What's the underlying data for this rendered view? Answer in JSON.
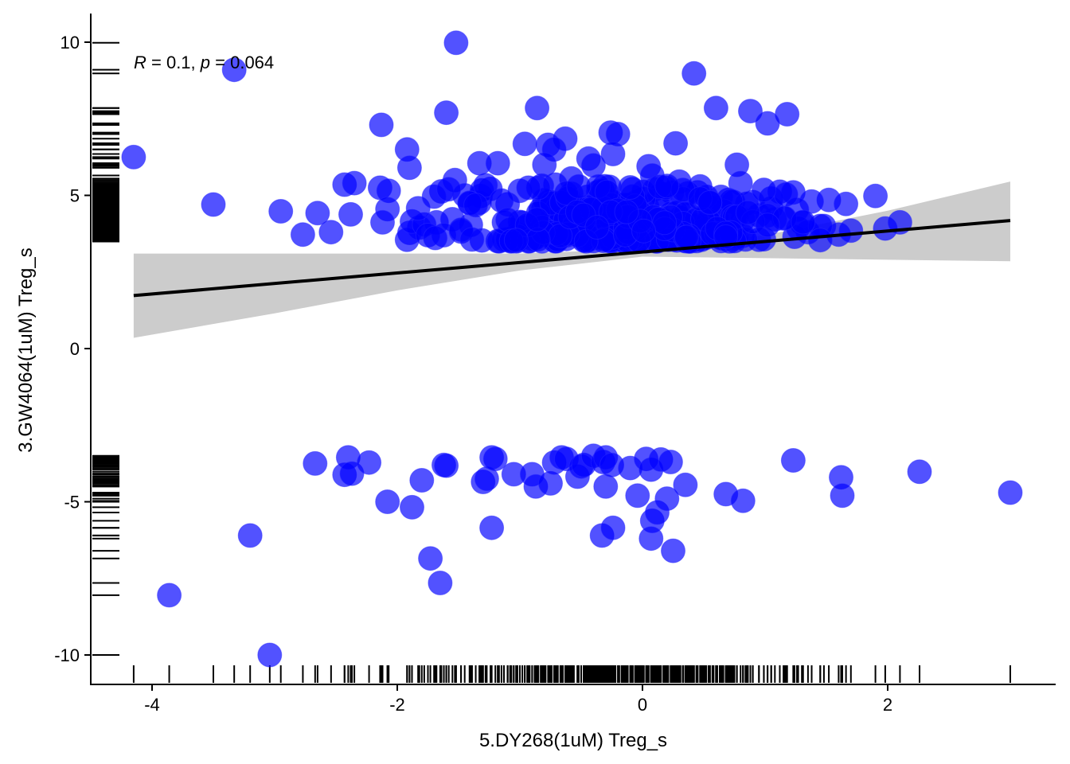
{
  "chart_data": {
    "type": "scatter",
    "title": "",
    "xlabel": "5.DY268(1uM) Treg_s",
    "ylabel": "3.GW4064(1uM) Treg_s",
    "xlim": [
      -4.5,
      3.35
    ],
    "ylim": [
      -11,
      11
    ],
    "x_ticks": [
      -4,
      -2,
      0,
      2
    ],
    "y_ticks": [
      -10,
      -5,
      0,
      5,
      10
    ],
    "x_tick_labels": [
      "-4",
      "-2",
      "0",
      "2"
    ],
    "y_tick_labels": [
      "-10",
      "-5",
      "0",
      "5",
      "10"
    ],
    "grid": false,
    "legend": "none",
    "annotation": {
      "r_symbol": "R",
      "r_text": " = 0.1, ",
      "p_symbol": "p",
      "p_text": " = 0.064"
    },
    "point_color": "#0000ff",
    "point_opacity": 0.68,
    "band_color": "#cccccc",
    "line_color": "#000000",
    "regression": {
      "x_range": [
        -4.15,
        3.0
      ],
      "line": [
        [
          -4.15,
          1.73
        ],
        [
          3.0,
          4.18
        ]
      ],
      "band_upper": [
        [
          -4.15,
          3.1
        ],
        [
          -3.0,
          3.1
        ],
        [
          -2.0,
          3.1
        ],
        [
          -1.0,
          3.1
        ],
        [
          0.0,
          3.25
        ],
        [
          1.0,
          3.7
        ],
        [
          2.0,
          4.5
        ],
        [
          3.0,
          5.45
        ]
      ],
      "band_lower": [
        [
          -4.15,
          0.35
        ],
        [
          -3.0,
          1.15
        ],
        [
          -2.0,
          1.9
        ],
        [
          -1.0,
          2.55
        ],
        [
          0.0,
          3.0
        ],
        [
          1.0,
          2.95
        ],
        [
          2.0,
          2.9
        ],
        [
          3.0,
          2.85
        ]
      ]
    },
    "points": [
      [
        -1.52,
        9.98
      ],
      [
        -3.33,
        9.1
      ],
      [
        0.42,
        8.98
      ],
      [
        -0.86,
        7.85
      ],
      [
        0.6,
        7.85
      ],
      [
        0.88,
        7.75
      ],
      [
        1.18,
        7.65
      ],
      [
        -1.6,
        7.7
      ],
      [
        -2.13,
        7.3
      ],
      [
        1.02,
        7.35
      ],
      [
        -0.26,
        7.05
      ],
      [
        -0.2,
        7.0
      ],
      [
        -0.63,
        6.85
      ],
      [
        -0.77,
        6.65
      ],
      [
        -0.96,
        6.68
      ],
      [
        0.27,
        6.7
      ],
      [
        -0.72,
        6.5
      ],
      [
        -1.92,
        6.5
      ],
      [
        -4.15,
        6.25
      ],
      [
        -0.44,
        6.2
      ],
      [
        -0.24,
        6.35
      ],
      [
        -1.33,
        6.05
      ],
      [
        -1.18,
        6.05
      ],
      [
        -0.8,
        6.0
      ],
      [
        0.05,
        5.95
      ],
      [
        0.77,
        6.0
      ],
      [
        -1.9,
        5.9
      ],
      [
        -0.4,
        5.98
      ],
      [
        0.08,
        5.65
      ],
      [
        -0.58,
        5.55
      ],
      [
        -1.53,
        5.5
      ],
      [
        0.3,
        5.45
      ],
      [
        -0.71,
        5.35
      ],
      [
        0.8,
        5.4
      ],
      [
        -2.43,
        5.35
      ],
      [
        -2.35,
        5.4
      ],
      [
        -0.31,
        5.3
      ],
      [
        0.1,
        5.2
      ],
      [
        -2.14,
        5.25
      ],
      [
        -2.07,
        5.15
      ],
      [
        -1.45,
        5.0
      ],
      [
        -1.32,
        4.98
      ],
      [
        -1.0,
        5.15
      ],
      [
        1.12,
        5.12
      ],
      [
        1.23,
        5.1
      ],
      [
        -0.08,
        5.2
      ],
      [
        0.45,
        5.1
      ],
      [
        0.15,
        5.05
      ],
      [
        1.9,
        4.98
      ],
      [
        -3.5,
        4.7
      ],
      [
        -2.95,
        4.48
      ],
      [
        -2.65,
        4.42
      ],
      [
        -2.08,
        4.55
      ],
      [
        -2.38,
        4.38
      ],
      [
        -2.12,
        4.12
      ],
      [
        -2.77,
        3.72
      ],
      [
        -2.54,
        3.8
      ],
      [
        -1.68,
        4.12
      ],
      [
        -1.55,
        4.22
      ],
      [
        -1.82,
        3.95
      ],
      [
        -1.9,
        3.78
      ],
      [
        -1.62,
        3.7
      ],
      [
        -1.48,
        3.82
      ],
      [
        -1.92,
        3.55
      ],
      [
        -1.88,
        4.15
      ],
      [
        -1.78,
        4.05
      ],
      [
        1.52,
        4.85
      ],
      [
        1.38,
        4.8
      ],
      [
        1.66,
        4.72
      ],
      [
        1.05,
        4.9
      ],
      [
        0.9,
        4.78
      ],
      [
        0.7,
        4.85
      ],
      [
        0.55,
        4.6
      ],
      [
        0.6,
        4.3
      ],
      [
        0.82,
        4.2
      ],
      [
        0.95,
        4.35
      ],
      [
        1.15,
        4.25
      ],
      [
        1.3,
        4.1
      ],
      [
        1.48,
        4.0
      ],
      [
        1.6,
        3.72
      ],
      [
        1.7,
        3.85
      ],
      [
        1.98,
        3.92
      ],
      [
        2.1,
        4.12
      ],
      [
        1.35,
        3.8
      ],
      [
        0.95,
        3.55
      ],
      [
        0.75,
        3.6
      ],
      [
        0.5,
        3.72
      ],
      [
        0.35,
        3.55
      ],
      [
        -3.86,
        -8.05
      ],
      [
        -3.04,
        -10.0
      ],
      [
        -3.2,
        -6.1
      ],
      [
        -2.67,
        -3.75
      ],
      [
        -2.43,
        -4.12
      ],
      [
        -2.4,
        -3.55
      ],
      [
        -2.37,
        -4.08
      ],
      [
        -2.23,
        -3.72
      ],
      [
        -2.08,
        -5.0
      ],
      [
        -1.88,
        -5.18
      ],
      [
        -1.8,
        -4.3
      ],
      [
        -1.73,
        -6.85
      ],
      [
        -1.65,
        -7.65
      ],
      [
        -1.62,
        -3.8
      ],
      [
        -1.6,
        -3.82
      ],
      [
        -1.3,
        -4.35
      ],
      [
        -1.27,
        -4.25
      ],
      [
        -1.23,
        -3.55
      ],
      [
        -1.2,
        -3.6
      ],
      [
        -1.23,
        -5.85
      ],
      [
        -1.05,
        -4.1
      ],
      [
        -0.9,
        -4.1
      ],
      [
        -0.87,
        -4.5
      ],
      [
        -0.75,
        -4.4
      ],
      [
        -0.72,
        -3.72
      ],
      [
        -0.66,
        -3.55
      ],
      [
        -0.62,
        -3.6
      ],
      [
        -0.53,
        -4.18
      ],
      [
        -0.5,
        -3.85
      ],
      [
        -0.48,
        -3.8
      ],
      [
        -0.4,
        -3.5
      ],
      [
        -0.32,
        -3.7
      ],
      [
        -0.3,
        -4.5
      ],
      [
        -0.3,
        -3.55
      ],
      [
        -0.25,
        -3.8
      ],
      [
        -0.33,
        -6.1
      ],
      [
        -0.24,
        -5.85
      ],
      [
        -0.1,
        -3.9
      ],
      [
        -0.04,
        -4.8
      ],
      [
        0.03,
        -3.6
      ],
      [
        0.07,
        -3.95
      ],
      [
        0.08,
        -5.62
      ],
      [
        0.12,
        -5.35
      ],
      [
        0.15,
        -3.62
      ],
      [
        0.2,
        -4.9
      ],
      [
        0.23,
        -3.7
      ],
      [
        0.07,
        -6.2
      ],
      [
        0.25,
        -6.6
      ],
      [
        0.35,
        -4.45
      ],
      [
        0.68,
        -4.75
      ],
      [
        0.82,
        -4.97
      ],
      [
        1.23,
        -3.65
      ],
      [
        1.62,
        -4.2
      ],
      [
        1.63,
        -4.8
      ],
      [
        2.26,
        -4.02
      ],
      [
        3.0,
        -4.7
      ]
    ],
    "dense_cluster": {
      "x_range": [
        -1.95,
        1.45
      ],
      "y_range": [
        3.5,
        5.35
      ],
      "x_center": -0.1,
      "x_spread": 0.65,
      "count": 330,
      "seed": 7
    }
  }
}
